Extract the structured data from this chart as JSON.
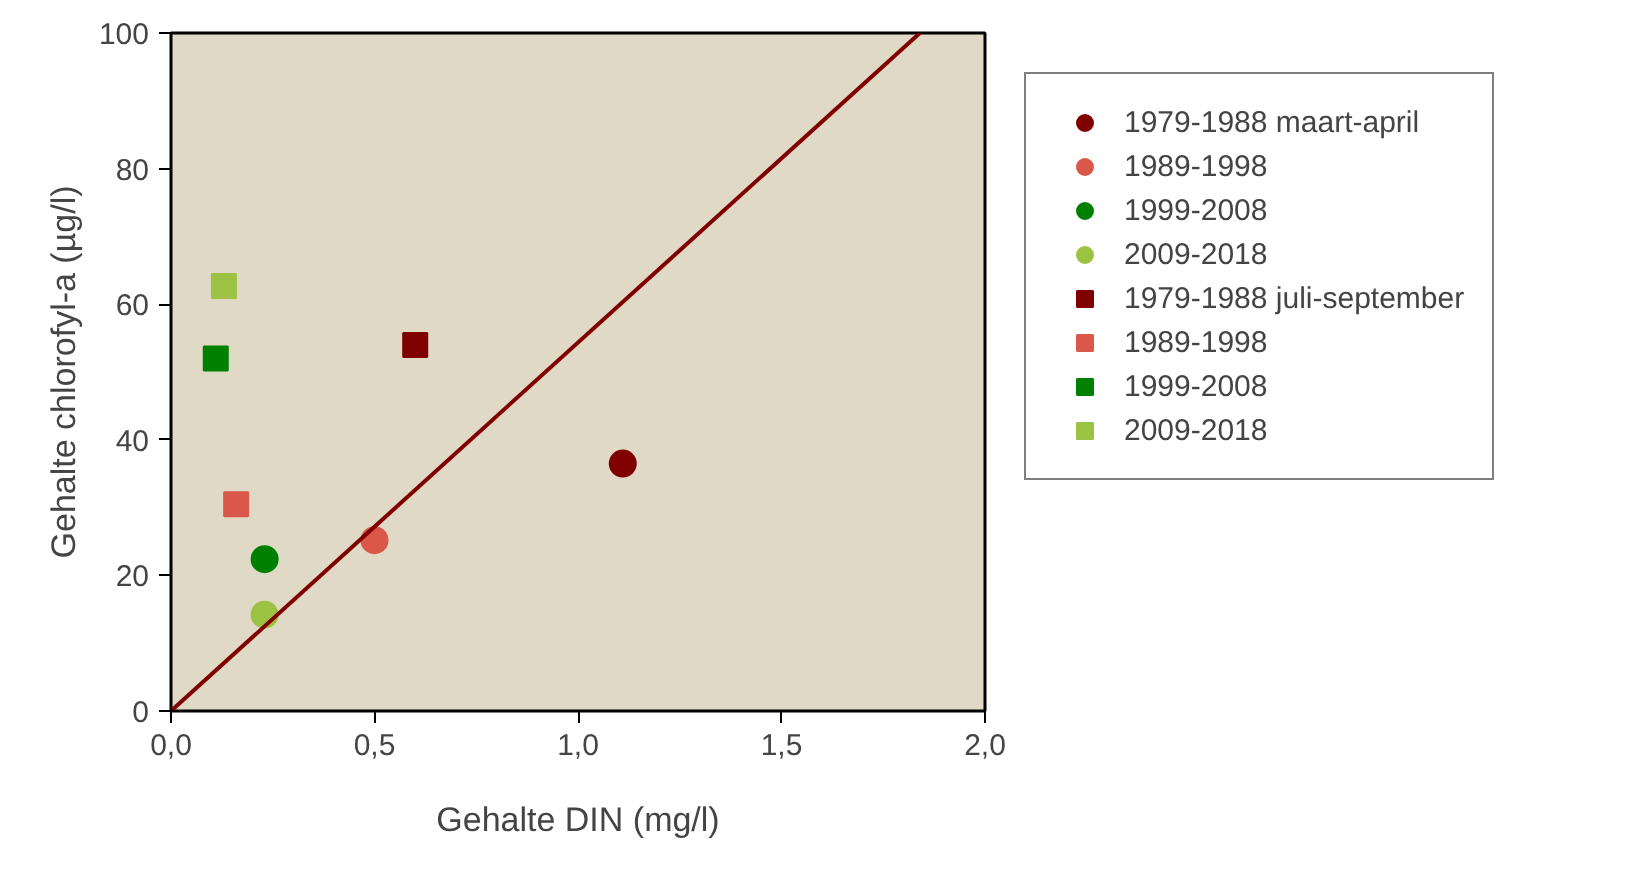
{
  "chart_data": {
    "type": "scatter",
    "xlabel": "Gehalte DIN (mg/l)",
    "ylabel": "Gehalte chlorofyl-a (µg/l)",
    "xlim": [
      0,
      2
    ],
    "ylim": [
      0,
      100
    ],
    "xticks": [
      {
        "value": 0,
        "label": "0,0"
      },
      {
        "value": 0.5,
        "label": "0,5"
      },
      {
        "value": 1,
        "label": "1,0"
      },
      {
        "value": 1.5,
        "label": "1,5"
      },
      {
        "value": 2,
        "label": "2,0"
      }
    ],
    "yticks": [
      0,
      20,
      40,
      60,
      80,
      100
    ],
    "grid": false,
    "legend": "right",
    "series": [
      {
        "name": "1979-1988 maart-april",
        "color": "#800000",
        "marker": "circle",
        "x": [
          1.11
        ],
        "values": [
          36.5
        ]
      },
      {
        "name": "1989-1998",
        "color": "#d9584a",
        "marker": "circle",
        "x": [
          0.5
        ],
        "values": [
          25.2
        ]
      },
      {
        "name": "1999-2008",
        "color": "#008000",
        "marker": "circle",
        "x": [
          0.23
        ],
        "values": [
          22.4
        ]
      },
      {
        "name": "2009-2018",
        "color": "#9bc242",
        "marker": "circle",
        "x": [
          0.23
        ],
        "values": [
          14.2
        ]
      },
      {
        "name": "1979-1988 juli-september",
        "color": "#800000",
        "marker": "square",
        "x": [
          0.6
        ],
        "values": [
          54
        ]
      },
      {
        "name": "1989-1998",
        "color": "#d9584a",
        "marker": "square",
        "x": [
          0.16
        ],
        "values": [
          30.5
        ]
      },
      {
        "name": "1999-2008",
        "color": "#008000",
        "marker": "square",
        "x": [
          0.11
        ],
        "values": [
          52
        ]
      },
      {
        "name": "2009-2018",
        "color": "#9bc242",
        "marker": "square",
        "x": [
          0.13
        ],
        "values": [
          62.7
        ]
      },
      {
        "type": "line",
        "color": "#800000",
        "x": [
          0,
          1.84
        ],
        "values": [
          0,
          100
        ]
      }
    ]
  }
}
